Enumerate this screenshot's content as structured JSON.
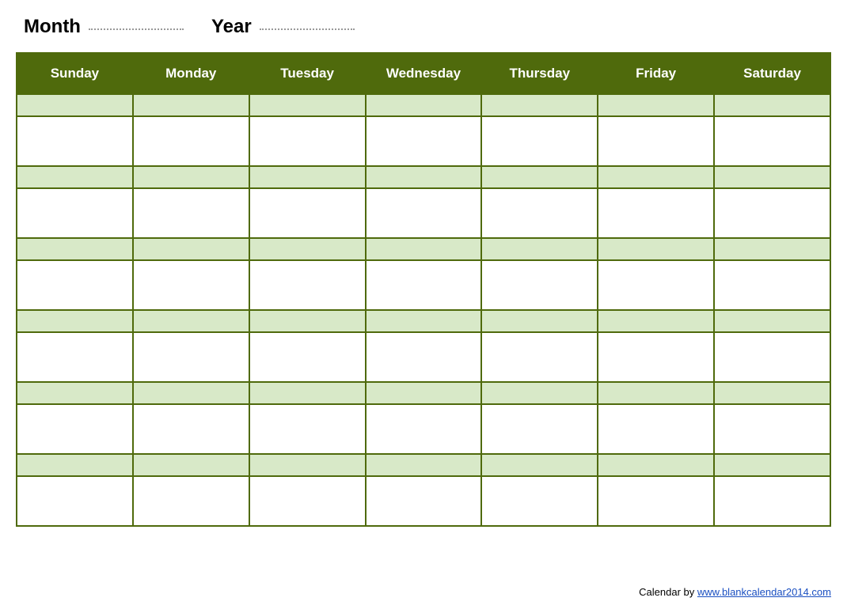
{
  "header": {
    "month_label": "Month",
    "year_label": "Year"
  },
  "calendar": {
    "days": [
      "Sunday",
      "Monday",
      "Tuesday",
      "Wednesday",
      "Thursday",
      "Friday",
      "Saturday"
    ],
    "header_bg_color": "#4f6a0c",
    "header_text_color": "#ffffff",
    "border_color": "#4f6a0c",
    "light_row_color": "#d8e9c8",
    "white_row_color": "#ffffff",
    "num_week_pairs": 6,
    "short_row_height": 28,
    "tall_row_height": 63,
    "column_count": 7
  },
  "footer": {
    "prefix": "Calendar by ",
    "link_text": "www.blankcalendar2014.com"
  }
}
